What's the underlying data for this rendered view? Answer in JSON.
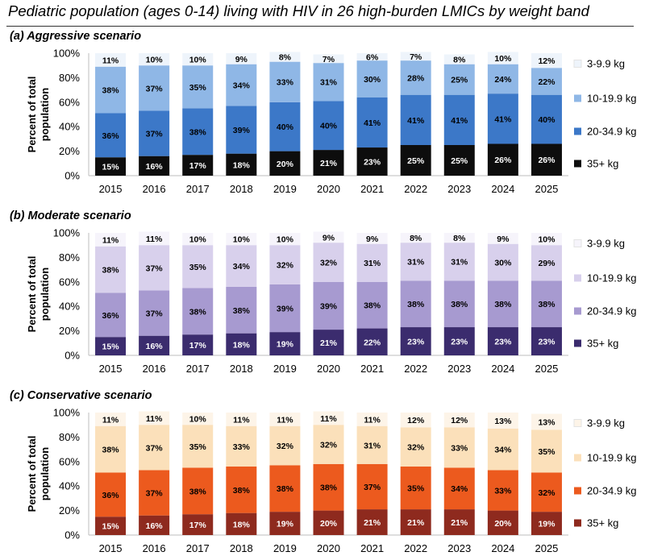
{
  "title": "Pediatric population (ages 0-14) living with HIV in 26 high-burden LMICs by weight band",
  "chart_data": [
    {
      "type": "bar",
      "stacked": true,
      "percent": true,
      "title": "(a) Aggressive scenario",
      "xlabel": "",
      "ylabel": "Percent of total population",
      "ylim": [
        0,
        100
      ],
      "yticks": [
        "0%",
        "20%",
        "40%",
        "60%",
        "80%",
        "100%"
      ],
      "categories": [
        "2015",
        "2016",
        "2017",
        "2018",
        "2019",
        "2020",
        "2021",
        "2022",
        "2023",
        "2024",
        "2025"
      ],
      "legend_position": "right",
      "series": [
        {
          "name": "35+ kg",
          "color": "#0d0d0d",
          "label_color": "#ffffff",
          "values": [
            15,
            16,
            17,
            18,
            20,
            21,
            23,
            25,
            25,
            26,
            26
          ],
          "labels": [
            "15%",
            "16%",
            "17%",
            "18%",
            "20%",
            "21%",
            "23%",
            "25%",
            "25%",
            "26%",
            "26%"
          ]
        },
        {
          "name": "20-34.9 kg",
          "color": "#3c78c8",
          "label_color": "#000000",
          "values": [
            36,
            37,
            38,
            39,
            40,
            40,
            41,
            41,
            41,
            41,
            40
          ],
          "labels": [
            "36%",
            "37%",
            "38%",
            "39%",
            "40%",
            "40%",
            "41%",
            "41%",
            "41%",
            "41%",
            "40%"
          ]
        },
        {
          "name": "10-19.9 kg",
          "color": "#8fb7e6",
          "label_color": "#000000",
          "values": [
            38,
            37,
            35,
            34,
            33,
            31,
            30,
            28,
            25,
            24,
            22
          ],
          "labels": [
            "38%",
            "37%",
            "35%",
            "34%",
            "33%",
            "31%",
            "30%",
            "28%",
            "25%",
            "24%",
            "22%"
          ]
        },
        {
          "name": "3-9.9 kg",
          "color": "#eef4fb",
          "label_color": "#000000",
          "values": [
            11,
            10,
            10,
            9,
            8,
            7,
            6,
            7,
            8,
            10,
            12
          ],
          "labels": [
            "11%",
            "10%",
            "10%",
            "9%",
            "8%",
            "7%",
            "6%",
            "7%",
            "8%",
            "10%",
            "12%"
          ]
        }
      ]
    },
    {
      "type": "bar",
      "stacked": true,
      "percent": true,
      "title": "(b) Moderate scenario",
      "xlabel": "",
      "ylabel": "Percent of total population",
      "ylim": [
        0,
        100
      ],
      "yticks": [
        "0%",
        "20%",
        "40%",
        "60%",
        "80%",
        "100%"
      ],
      "categories": [
        "2015",
        "2016",
        "2017",
        "2018",
        "2019",
        "2020",
        "2021",
        "2022",
        "2023",
        "2024",
        "2025"
      ],
      "legend_position": "right",
      "series": [
        {
          "name": "35+ kg",
          "color": "#3b2c6e",
          "label_color": "#ffffff",
          "values": [
            15,
            16,
            17,
            18,
            19,
            21,
            22,
            23,
            23,
            23,
            23
          ],
          "labels": [
            "15%",
            "16%",
            "17%",
            "18%",
            "19%",
            "21%",
            "22%",
            "23%",
            "23%",
            "23%",
            "23%"
          ]
        },
        {
          "name": "20-34.9 kg",
          "color": "#a79ad0",
          "label_color": "#000000",
          "values": [
            36,
            37,
            38,
            38,
            39,
            39,
            38,
            38,
            38,
            38,
            38
          ],
          "labels": [
            "36%",
            "37%",
            "38%",
            "38%",
            "39%",
            "39%",
            "38%",
            "38%",
            "38%",
            "38%",
            "38%"
          ]
        },
        {
          "name": "10-19.9 kg",
          "color": "#d8d0ec",
          "label_color": "#000000",
          "values": [
            38,
            37,
            35,
            34,
            32,
            32,
            31,
            31,
            31,
            30,
            29
          ],
          "labels": [
            "38%",
            "37%",
            "35%",
            "34%",
            "32%",
            "32%",
            "31%",
            "31%",
            "31%",
            "30%",
            "29%"
          ]
        },
        {
          "name": "3-9.9 kg",
          "color": "#f6f4fb",
          "label_color": "#000000",
          "values": [
            11,
            11,
            10,
            10,
            10,
            9,
            9,
            8,
            8,
            9,
            10
          ],
          "labels": [
            "11%",
            "11%",
            "10%",
            "10%",
            "10%",
            "9%",
            "9%",
            "8%",
            "8%",
            "9%",
            "10%"
          ]
        }
      ]
    },
    {
      "type": "bar",
      "stacked": true,
      "percent": true,
      "title": "(c) Conservative scenario",
      "xlabel": "",
      "ylabel": "Percent of total population",
      "ylim": [
        0,
        100
      ],
      "yticks": [
        "0%",
        "20%",
        "40%",
        "60%",
        "80%",
        "100%"
      ],
      "categories": [
        "2015",
        "2016",
        "2017",
        "2018",
        "2019",
        "2020",
        "2021",
        "2022",
        "2023",
        "2024",
        "2025"
      ],
      "legend_position": "right",
      "series": [
        {
          "name": "35+ kg",
          "color": "#8e2a1e",
          "label_color": "#ffffff",
          "values": [
            15,
            16,
            17,
            18,
            19,
            20,
            21,
            21,
            21,
            20,
            19
          ],
          "labels": [
            "15%",
            "16%",
            "17%",
            "18%",
            "19%",
            "20%",
            "21%",
            "21%",
            "21%",
            "20%",
            "19%"
          ]
        },
        {
          "name": "20-34.9 kg",
          "color": "#ec5a1e",
          "label_color": "#000000",
          "values": [
            36,
            37,
            38,
            38,
            38,
            38,
            37,
            35,
            34,
            33,
            32
          ],
          "labels": [
            "36%",
            "37%",
            "38%",
            "38%",
            "38%",
            "38%",
            "37%",
            "35%",
            "34%",
            "33%",
            "32%"
          ]
        },
        {
          "name": "10-19.9 kg",
          "color": "#fbe0ba",
          "label_color": "#000000",
          "values": [
            38,
            37,
            35,
            33,
            32,
            32,
            31,
            32,
            33,
            34,
            35
          ],
          "labels": [
            "38%",
            "37%",
            "35%",
            "33%",
            "32%",
            "32%",
            "31%",
            "32%",
            "33%",
            "34%",
            "35%"
          ]
        },
        {
          "name": "3-9.9 kg",
          "color": "#fdf4e8",
          "label_color": "#000000",
          "values": [
            11,
            11,
            10,
            11,
            11,
            11,
            11,
            12,
            12,
            13,
            13
          ],
          "labels": [
            "11%",
            "11%",
            "10%",
            "11%",
            "11%",
            "11%",
            "11%",
            "12%",
            "12%",
            "13%",
            "13%"
          ]
        }
      ]
    }
  ]
}
